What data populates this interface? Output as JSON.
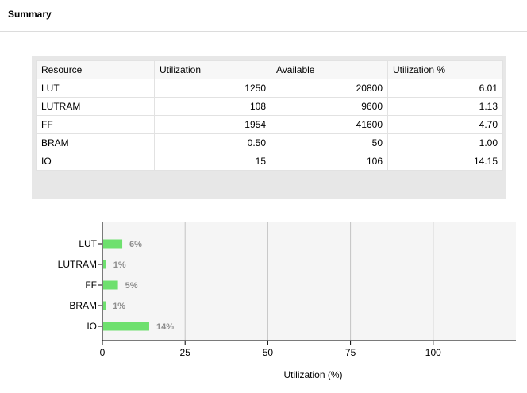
{
  "header": {
    "title": "Summary"
  },
  "table": {
    "columns": [
      "Resource",
      "Utilization",
      "Available",
      "Utilization %"
    ],
    "rows": [
      {
        "resource": "LUT",
        "utilization": "1250",
        "available": "20800",
        "pct": "6.01"
      },
      {
        "resource": "LUTRAM",
        "utilization": "108",
        "available": "9600",
        "pct": "1.13"
      },
      {
        "resource": "FF",
        "utilization": "1954",
        "available": "41600",
        "pct": "4.70"
      },
      {
        "resource": "BRAM",
        "utilization": "0.50",
        "available": "50",
        "pct": "1.00"
      },
      {
        "resource": "IO",
        "utilization": "15",
        "available": "106",
        "pct": "14.15"
      }
    ]
  },
  "chart_data": {
    "type": "bar",
    "orientation": "horizontal",
    "categories": [
      "LUT",
      "LUTRAM",
      "FF",
      "BRAM",
      "IO"
    ],
    "values": [
      6.01,
      1.13,
      4.7,
      1.0,
      14.15
    ],
    "data_labels": [
      "6%",
      "1%",
      "5%",
      "1%",
      "14%"
    ],
    "xlabel": "Utilization (%)",
    "xlim": [
      0,
      125
    ],
    "xticks": [
      0,
      25,
      50,
      75,
      100
    ],
    "grid": true,
    "bar_color": "#6ee06e"
  }
}
